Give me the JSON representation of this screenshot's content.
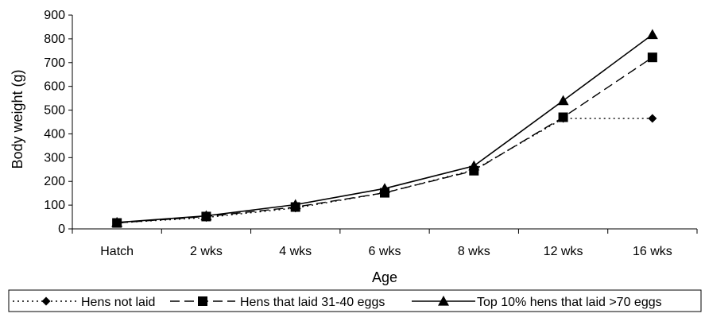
{
  "chart_data": {
    "type": "line",
    "title": "",
    "xlabel": "Age",
    "ylabel": "Body weight (g)",
    "ylim": [
      0,
      900
    ],
    "yticks": [
      0,
      100,
      200,
      300,
      400,
      500,
      600,
      700,
      800,
      900
    ],
    "categories": [
      "Hatch",
      "2 wks",
      "4 wks",
      "6 wks",
      "8 wks",
      "12 wks",
      "16 wks"
    ],
    "grid": false,
    "legend_position": "bottom",
    "series": [
      {
        "name": "Hens not laid",
        "marker": "diamond",
        "line_style": "dotted",
        "color": "#000000",
        "values": [
          25,
          48,
          88,
          152,
          248,
          465,
          465
        ]
      },
      {
        "name": "Hens that laid 31-40 eggs",
        "marker": "square",
        "line_style": "dashed",
        "color": "#000000",
        "values": [
          25,
          52,
          92,
          152,
          245,
          470,
          722
        ]
      },
      {
        "name": "Top 10% hens that laid >70 eggs",
        "marker": "triangle",
        "line_style": "solid",
        "color": "#000000",
        "values": [
          27,
          55,
          102,
          170,
          265,
          540,
          818
        ]
      }
    ]
  }
}
